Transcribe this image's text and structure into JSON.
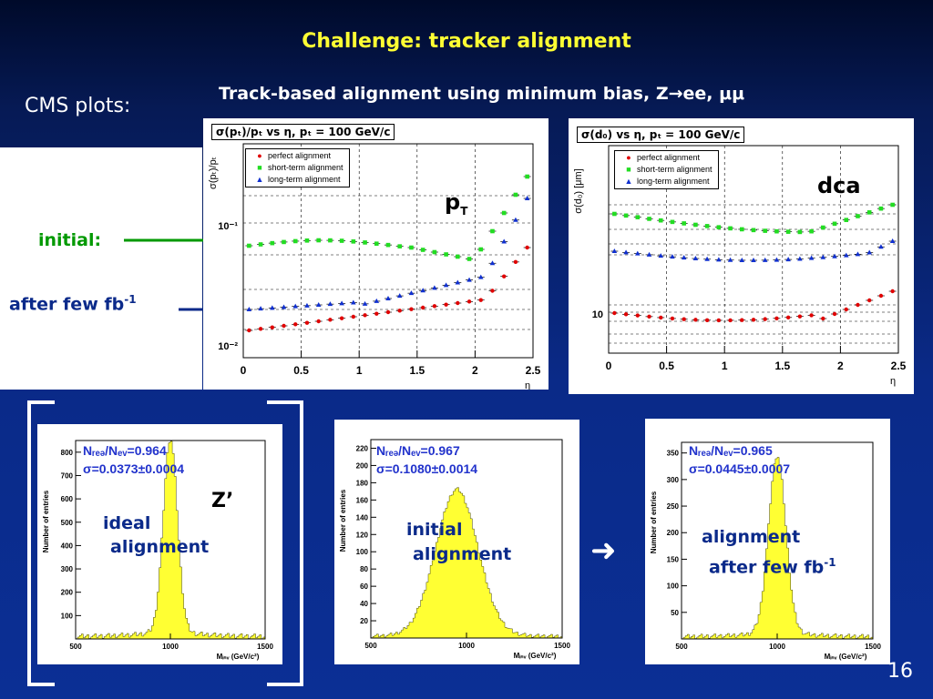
{
  "slide": {
    "title": "Challenge: tracker alignment",
    "subtitle": "Track-based alignment using minimum bias, Z→ee, μμ",
    "cms_label": "CMS plots:",
    "initial_label": "initial:",
    "after_label": "after few fb",
    "after_label_sup": "-1",
    "slide_number": "16",
    "arrow_symbol": "➜"
  },
  "plot_pt": {
    "title": "σ(pₜ)/pₜ vs η, pₜ = 100 GeV/c",
    "ylabel": "σ(pₜ)/pₜ",
    "xlabel": "η",
    "tag": "p",
    "tag_sub": "T",
    "y_ticks": [
      "10⁻¹",
      "10⁻²"
    ],
    "x_ticks": [
      "0",
      "0.5",
      "1",
      "1.5",
      "2",
      "2.5"
    ],
    "legend": [
      "perfect alignment",
      "short-term alignment",
      "long-term  alignment"
    ]
  },
  "plot_d0": {
    "title": "σ(d₀) vs η, pₜ = 100 GeV/c",
    "ylabel": "σ(d₀) [μm]",
    "xlabel": "η",
    "tag": "dca",
    "y_ticks": [
      "10"
    ],
    "x_ticks": [
      "0",
      "0.5",
      "1",
      "1.5",
      "2",
      "2.5"
    ],
    "legend": [
      "perfect alignment",
      "short-term alignment",
      "long-term  alignment"
    ]
  },
  "hist": [
    {
      "stat1": "Nᵣₑₔ/Nₑᵥ=0.964",
      "stat2": "σ=0.0373±0.0004",
      "label1": "ideal",
      "label2": "alignment",
      "tag": "Z’",
      "y_ticks": [
        "800",
        "700",
        "600",
        "500",
        "400",
        "300",
        "200",
        "100"
      ],
      "ylim": [
        0,
        850
      ],
      "x_ticks": [
        "500",
        "1000",
        "1500"
      ],
      "xlabel": "Mᵢₙᵥ (GeV/c²)",
      "ylabel": "Number of entries",
      "peak": 1000,
      "sigma": 37,
      "height": 820
    },
    {
      "stat1": "Nᵣₑₔ/Nₑᵥ=0.967",
      "stat2": "σ=0.1080±0.0014",
      "label1": "initial",
      "label2": "alignment",
      "y_ticks": [
        "220",
        "200",
        "180",
        "160",
        "140",
        "120",
        "100",
        "80",
        "60",
        "40",
        "20"
      ],
      "ylim": [
        0,
        230
      ],
      "x_ticks": [
        "500",
        "1000",
        "1500"
      ],
      "xlabel": "Mᵢₙᵥ (GeV/c²)",
      "ylabel": "Number of entries",
      "peak": 950,
      "sigma": 110,
      "height": 165
    },
    {
      "stat1": "Nᵣₑₔ/Nₑᵥ=0.965",
      "stat2": "σ=0.0445±0.0007",
      "label1": "alignment",
      "label2": "after few fb",
      "label2_sup": "-1",
      "y_ticks": [
        "350",
        "300",
        "250",
        "200",
        "150",
        "100",
        "50"
      ],
      "ylim": [
        0,
        370
      ],
      "x_ticks": [
        "500",
        "1000",
        "1500"
      ],
      "xlabel": "Mᵢₙᵥ (GeV/c²)",
      "ylabel": "Number of entries",
      "peak": 1000,
      "sigma": 45,
      "height": 330
    }
  ],
  "colors": {
    "title": "#ffff33",
    "initial": "#009900",
    "accent": "#0b2a8a",
    "hist_fill": "#ffff33"
  }
}
